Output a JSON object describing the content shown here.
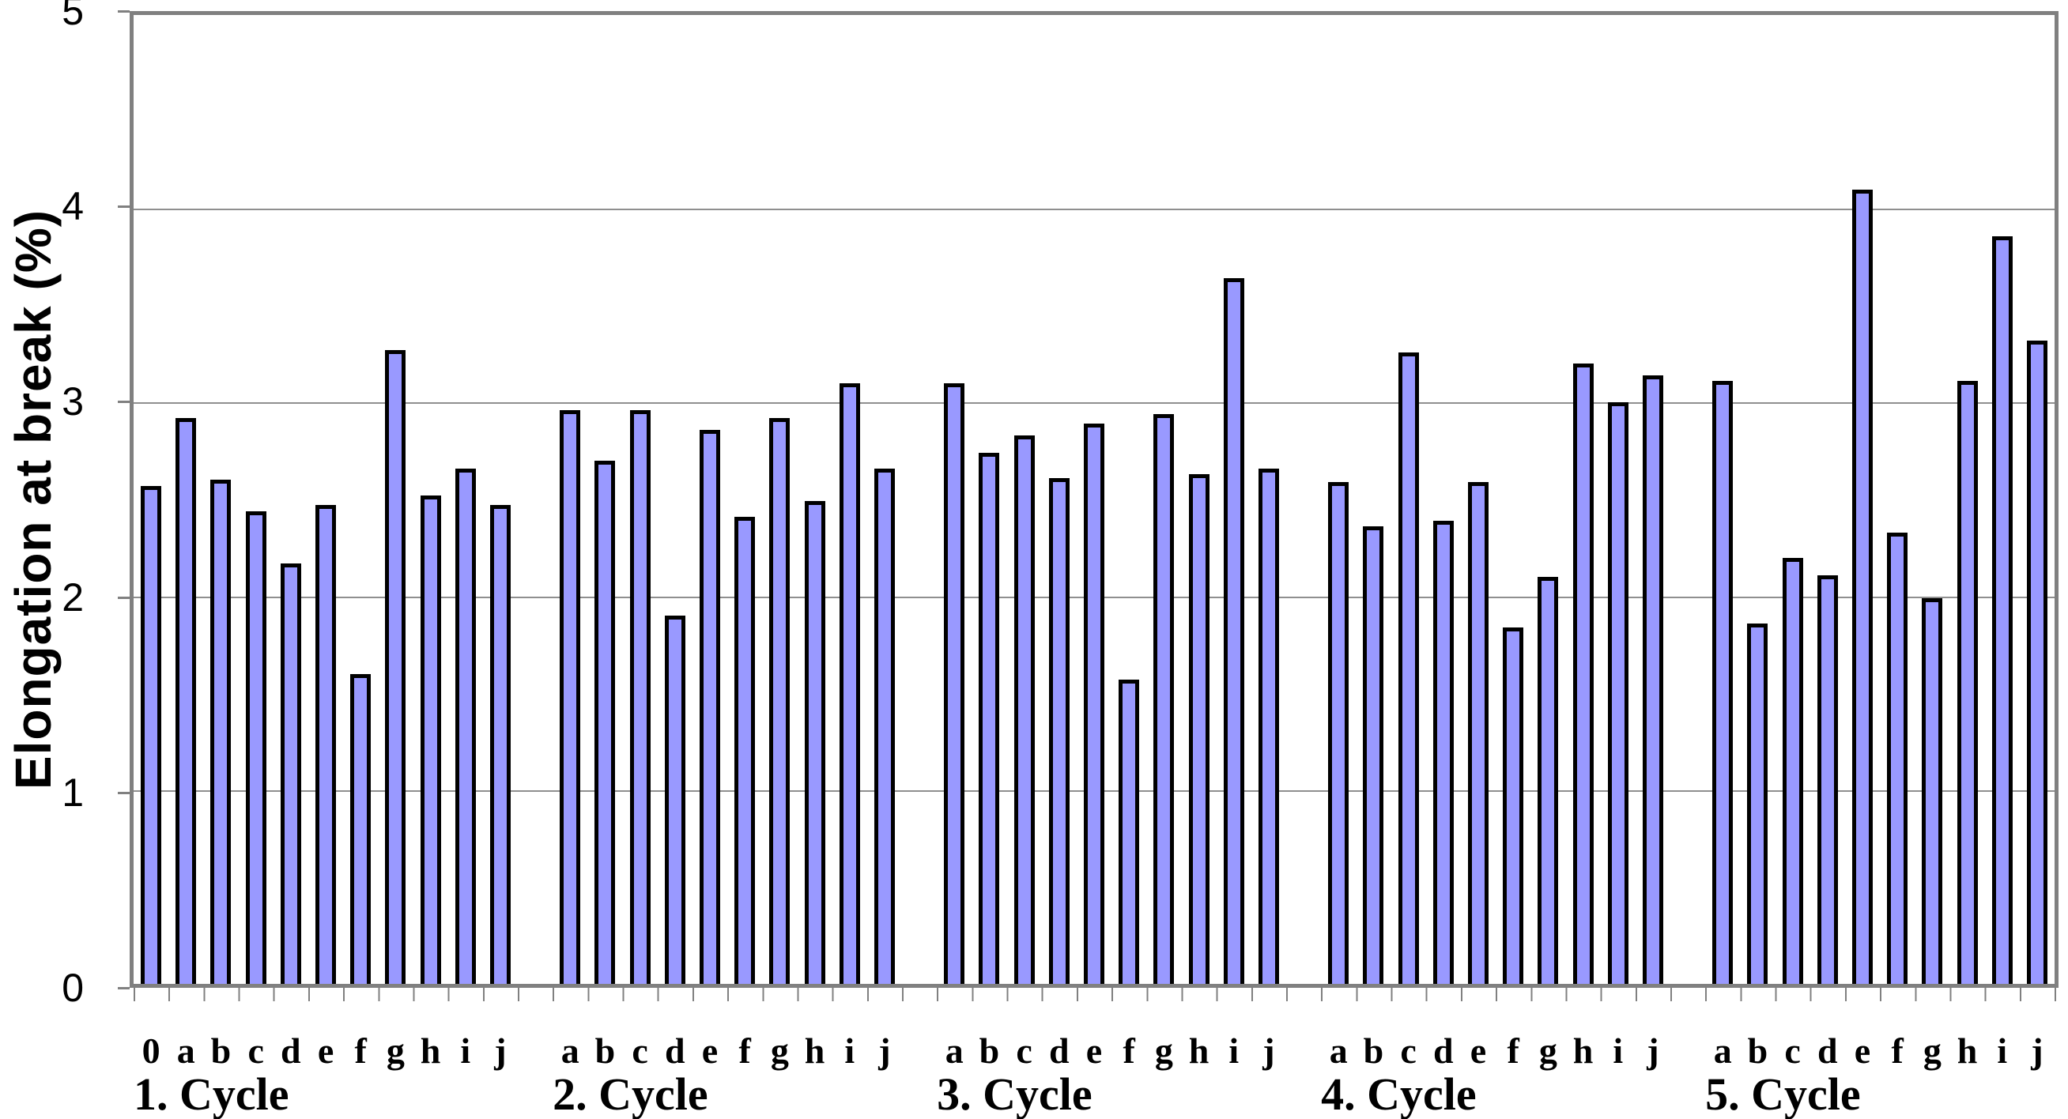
{
  "chart_data": {
    "type": "bar",
    "title": "",
    "xlabel": "",
    "ylabel": "Elongation at break (%)",
    "ylim": [
      0,
      5
    ],
    "ytick_labels": [
      "0",
      "1",
      "2",
      "3",
      "4",
      "5"
    ],
    "gridline_values": [
      1,
      2,
      3,
      4
    ],
    "grid": "horizontal-on",
    "legend": "none",
    "bar_fill_color": "#9999FF",
    "bar_border_color": "#000000",
    "plot_border_color": "#808080",
    "gridline_color": "#8f8f8f",
    "groups": [
      {
        "label": "1. Cycle",
        "categories": [
          "0",
          "a",
          "b",
          "c",
          "d",
          "e",
          "f",
          "g",
          "h",
          "i",
          "j"
        ],
        "values": [
          2.57,
          2.92,
          2.6,
          2.44,
          2.17,
          2.47,
          1.6,
          3.27,
          2.52,
          2.66,
          2.47
        ]
      },
      {
        "label": "2. Cycle",
        "categories": [
          "a",
          "b",
          "c",
          "d",
          "e",
          "f",
          "g",
          "h",
          "i",
          "j"
        ],
        "values": [
          2.96,
          2.7,
          2.96,
          1.9,
          2.86,
          2.41,
          2.92,
          2.49,
          3.1,
          2.66
        ]
      },
      {
        "label": "3. Cycle",
        "categories": [
          "a",
          "b",
          "c",
          "d",
          "e",
          "f",
          "g",
          "h",
          "i",
          "j"
        ],
        "values": [
          3.1,
          2.74,
          2.83,
          2.61,
          2.89,
          1.57,
          2.94,
          2.63,
          3.64,
          2.66
        ]
      },
      {
        "label": "4. Cycle",
        "categories": [
          "a",
          "b",
          "c",
          "d",
          "e",
          "f",
          "g",
          "h",
          "i",
          "j"
        ],
        "values": [
          2.59,
          2.36,
          3.26,
          2.39,
          2.59,
          1.84,
          2.1,
          3.2,
          3.0,
          3.14
        ]
      },
      {
        "label": "5. Cycle",
        "categories": [
          "a",
          "b",
          "c",
          "d",
          "e",
          "f",
          "g",
          "h",
          "i",
          "j"
        ],
        "values": [
          3.11,
          1.86,
          2.2,
          2.11,
          4.1,
          2.33,
          1.99,
          3.11,
          3.86,
          3.32
        ]
      }
    ]
  }
}
